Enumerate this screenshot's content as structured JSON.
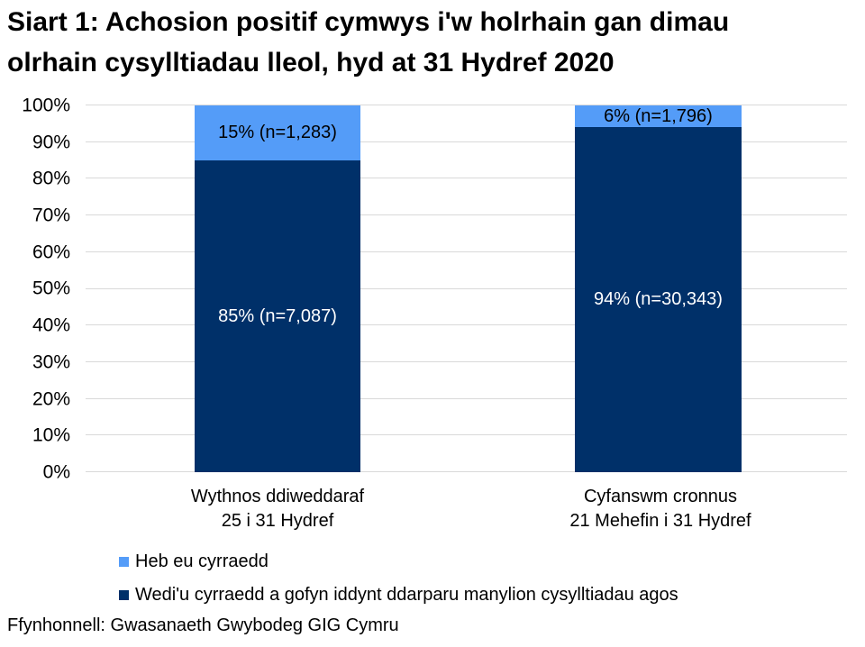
{
  "title": {
    "full": "Siart 1: Achosion positif cymwys i'w holrhain gan dimau olrhain cysylltiadau lleol, hyd at 31 Hydref 2020",
    "line1": "Siart 1: Achosion positif cymwys i'w holrhain gan dimau",
    "line2": "olrhain cysylltiadau lleol, hyd at 31 Hydref 2020"
  },
  "chart_data": {
    "type": "bar",
    "stacked": true,
    "title": "Siart 1: Achosion positif cymwys i'w holrhain gan dimau olrhain cysylltiadau lleol, hyd at 31 Hydref 2020",
    "categories": [
      "Wythnos ddiweddaraf 25 i 31 Hydref",
      "Cyfanswm cronnus 21 Mehefin i 31 Hydref"
    ],
    "category_lines": [
      {
        "line1": "Wythnos ddiweddaraf",
        "line2": "25 i 31 Hydref"
      },
      {
        "line1": "Cyfanswm cronnus",
        "line2": "21 Mehefin i 31 Hydref"
      }
    ],
    "series": [
      {
        "name": "Heb eu cyrraedd",
        "color": "#549cf8",
        "values": [
          15,
          6
        ],
        "counts": [
          1283,
          1796
        ],
        "labels": [
          "15% (n=1,283)",
          "6% (n=1,796)"
        ]
      },
      {
        "name": "Wedi'u cyrraedd a gofyn iddynt ddarparu manylion cysylltiadau agos",
        "color": "#003069",
        "values": [
          85,
          94
        ],
        "counts": [
          7087,
          30343
        ],
        "labels": [
          "85% (n=7,087)",
          "94% (n=30,343)"
        ]
      }
    ],
    "ylim": [
      0,
      100
    ],
    "yticks": [
      "100%",
      "90%",
      "80%",
      "70%",
      "60%",
      "50%",
      "40%",
      "30%",
      "20%",
      "10%",
      "0%"
    ],
    "grid": "horizontal",
    "legend_position": "bottom-left"
  },
  "legend": {
    "items": [
      {
        "label": "Heb eu cyrraedd",
        "color": "#549cf8"
      },
      {
        "label": "Wedi'u cyrraedd a gofyn iddynt ddarparu manylion cysylltiadau agos",
        "color": "#003069"
      }
    ]
  },
  "source": "Ffynhonnell: Gwasanaeth Gwybodeg GIG Cymru",
  "colors": {
    "grid": "#d9d9d9",
    "light_series": "#549cf8",
    "dark_series": "#003069",
    "text": "#000000"
  }
}
